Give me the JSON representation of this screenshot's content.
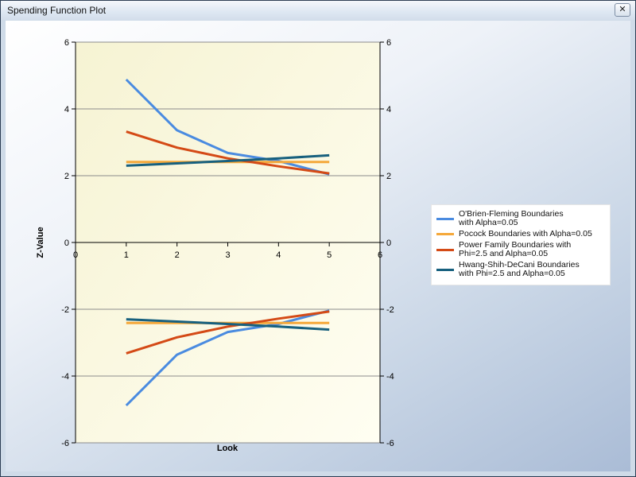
{
  "window": {
    "title": "Spending Function Plot",
    "close_label": "✕"
  },
  "chart_data": {
    "type": "line",
    "xlabel": "Look",
    "ylabel": "Z-Value",
    "xlim": [
      0,
      6
    ],
    "ylim": [
      -6,
      6
    ],
    "x_ticks": [
      "0",
      "1",
      "2",
      "3",
      "4",
      "5",
      "6"
    ],
    "y_ticks": [
      "-6",
      "-4",
      "-2",
      "0",
      "2",
      "4",
      "6"
    ],
    "grid": "horizontal",
    "legend_position": "right",
    "series": [
      {
        "name": "O'Brien-Fleming Boundaries\nwith Alpha=0.05",
        "color": "#4a8be0",
        "x": [
          1,
          2,
          3,
          4,
          5
        ],
        "upper": [
          4.88,
          3.36,
          2.68,
          2.44,
          2.04
        ],
        "lower": [
          -4.88,
          -3.36,
          -2.68,
          -2.44,
          -2.04
        ]
      },
      {
        "name": "Pocock Boundaries with Alpha=0.05",
        "color": "#f5a83a",
        "x": [
          1,
          2,
          3,
          4,
          5
        ],
        "upper": [
          2.41,
          2.41,
          2.41,
          2.41,
          2.41
        ],
        "lower": [
          -2.41,
          -2.41,
          -2.41,
          -2.41,
          -2.41
        ]
      },
      {
        "name": "Power Family Boundaries with\nPhi=2.5 and Alpha=0.05",
        "color": "#d44a16",
        "x": [
          1,
          2,
          3,
          4,
          5
        ],
        "upper": [
          3.32,
          2.84,
          2.52,
          2.28,
          2.07
        ],
        "lower": [
          -3.32,
          -2.84,
          -2.52,
          -2.28,
          -2.07
        ]
      },
      {
        "name": "Hwang-Shih-DeCani Boundaries\nwith Phi=2.5 and Alpha=0.05",
        "color": "#17607e",
        "x": [
          1,
          2,
          3,
          4,
          5
        ],
        "upper": [
          2.3,
          2.37,
          2.44,
          2.52,
          2.61
        ],
        "lower": [
          -2.3,
          -2.37,
          -2.44,
          -2.52,
          -2.61
        ]
      }
    ]
  }
}
